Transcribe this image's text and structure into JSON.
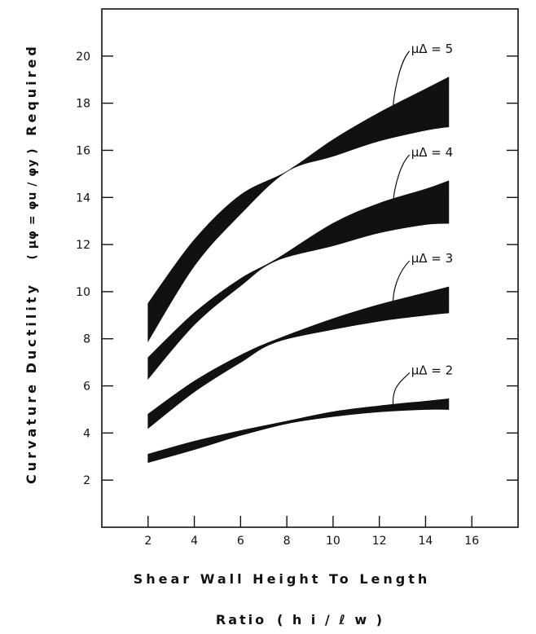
{
  "chart_data": {
    "type": "area",
    "title": "",
    "xlabel": "Shear Wall Height To Length",
    "xlabel_line2": "Ratio",
    "xlabel_symbol": "( h i / ℓ w )",
    "ylabel": "Curvature Ductility",
    "ylabel_formula": "( μφ = φu / φy )",
    "ylabel_end": "Required",
    "xlim": [
      0,
      18
    ],
    "ylim": [
      0,
      22
    ],
    "xticks": [
      2,
      4,
      6,
      8,
      10,
      12,
      14,
      16
    ],
    "yticks": [
      2,
      4,
      6,
      8,
      10,
      12,
      14,
      16,
      18,
      20
    ],
    "grid": false,
    "series": [
      {
        "name": "μΔ = 2",
        "x": [
          2,
          4,
          6,
          8,
          10,
          12,
          14,
          15
        ],
        "upper": [
          3.1,
          3.65,
          4.1,
          4.5,
          4.9,
          5.15,
          5.35,
          5.45
        ],
        "lower": [
          2.75,
          3.3,
          3.9,
          4.4,
          4.7,
          4.9,
          5.0,
          5.0
        ]
      },
      {
        "name": "μΔ = 3",
        "x": [
          2,
          4,
          6,
          7.5,
          10,
          12,
          14,
          15
        ],
        "upper": [
          4.8,
          6.2,
          7.3,
          7.95,
          8.85,
          9.45,
          9.95,
          10.2
        ],
        "lower": [
          4.2,
          5.75,
          7.0,
          7.85,
          8.4,
          8.75,
          9.0,
          9.1
        ]
      },
      {
        "name": "μΔ = 4",
        "x": [
          2,
          4,
          6,
          7.5,
          10,
          12,
          14,
          15
        ],
        "upper": [
          7.2,
          9.1,
          10.55,
          11.35,
          12.9,
          13.75,
          14.35,
          14.7
        ],
        "lower": [
          6.3,
          8.6,
          10.25,
          11.3,
          11.95,
          12.5,
          12.85,
          12.9
        ]
      },
      {
        "name": "μΔ = 5",
        "x": [
          2,
          4,
          6,
          8,
          10,
          12,
          14,
          15
        ],
        "upper": [
          9.5,
          12.2,
          14.1,
          15.1,
          16.45,
          17.6,
          18.6,
          19.1
        ],
        "lower": [
          7.9,
          11.1,
          13.3,
          15.1,
          15.75,
          16.4,
          16.85,
          17.0
        ]
      }
    ]
  }
}
